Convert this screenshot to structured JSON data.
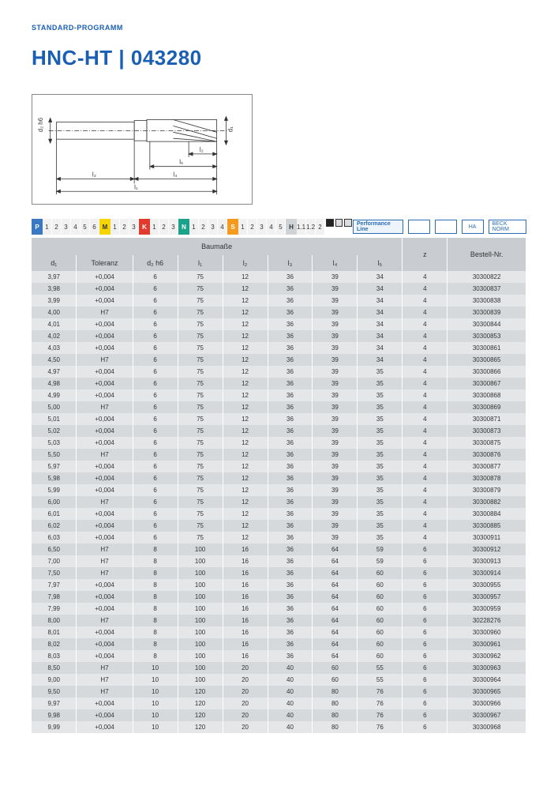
{
  "header_label": "STANDARD-PROGRAMM",
  "title": "HNC-HT | 043280",
  "diagram": {
    "labels": {
      "d1": "d₁",
      "d2h6": "d₂ h6",
      "l1": "l₁",
      "l2": "l₂",
      "l3": "l₃",
      "l4": "l₄",
      "l5": "l₅"
    }
  },
  "strip": {
    "groups": [
      {
        "label": "P",
        "color": "#3a78c4",
        "nums": [
          "1",
          "2",
          "3",
          "4",
          "5",
          "6"
        ]
      },
      {
        "label": "M",
        "color": "#f5d400",
        "nums": [
          "1",
          "2",
          "3"
        ]
      },
      {
        "label": "K",
        "color": "#e23b2e",
        "nums": [
          "1",
          "2",
          "3"
        ]
      },
      {
        "label": "N",
        "color": "#1aa38a",
        "nums": [
          "1",
          "2",
          "3",
          "4"
        ]
      },
      {
        "label": "S",
        "color": "#f39a1f",
        "nums": [
          "1",
          "2",
          "3",
          "4",
          "5"
        ]
      },
      {
        "label": "H",
        "color": "#d0d3d6",
        "nums": [
          "1.1",
          "1.2",
          "2"
        ]
      }
    ],
    "right_icons": [
      "Performance Line",
      "",
      "",
      "HA",
      "BECK NORM"
    ]
  },
  "table": {
    "group_header": "Baumaße",
    "z_header": "z",
    "bestell_header": "Bestell-Nr.",
    "columns": [
      "d₁",
      "Toleranz",
      "d₂ h6",
      "l₁",
      "l₂",
      "l₃",
      "l₄",
      "l₅"
    ],
    "rows": [
      [
        "3,97",
        "+0,004",
        "6",
        "75",
        "12",
        "36",
        "39",
        "34",
        "4",
        "30300822"
      ],
      [
        "3,98",
        "+0,004",
        "6",
        "75",
        "12",
        "36",
        "39",
        "34",
        "4",
        "30300837"
      ],
      [
        "3,99",
        "+0,004",
        "6",
        "75",
        "12",
        "36",
        "39",
        "34",
        "4",
        "30300838"
      ],
      [
        "4,00",
        "H7",
        "6",
        "75",
        "12",
        "36",
        "39",
        "34",
        "4",
        "30300839"
      ],
      [
        "4,01",
        "+0,004",
        "6",
        "75",
        "12",
        "36",
        "39",
        "34",
        "4",
        "30300844"
      ],
      [
        "4,02",
        "+0,004",
        "6",
        "75",
        "12",
        "36",
        "39",
        "34",
        "4",
        "30300853"
      ],
      [
        "4,03",
        "+0,004",
        "6",
        "75",
        "12",
        "36",
        "39",
        "34",
        "4",
        "30300861"
      ],
      [
        "4,50",
        "H7",
        "6",
        "75",
        "12",
        "36",
        "39",
        "34",
        "4",
        "30300865"
      ],
      [
        "4,97",
        "+0,004",
        "6",
        "75",
        "12",
        "36",
        "39",
        "35",
        "4",
        "30300866"
      ],
      [
        "4,98",
        "+0,004",
        "6",
        "75",
        "12",
        "36",
        "39",
        "35",
        "4",
        "30300867"
      ],
      [
        "4,99",
        "+0,004",
        "6",
        "75",
        "12",
        "36",
        "39",
        "35",
        "4",
        "30300868"
      ],
      [
        "5,00",
        "H7",
        "6",
        "75",
        "12",
        "36",
        "39",
        "35",
        "4",
        "30300869"
      ],
      [
        "5,01",
        "+0,004",
        "6",
        "75",
        "12",
        "36",
        "39",
        "35",
        "4",
        "30300871"
      ],
      [
        "5,02",
        "+0,004",
        "6",
        "75",
        "12",
        "36",
        "39",
        "35",
        "4",
        "30300873"
      ],
      [
        "5,03",
        "+0,004",
        "6",
        "75",
        "12",
        "36",
        "39",
        "35",
        "4",
        "30300875"
      ],
      [
        "5,50",
        "H7",
        "6",
        "75",
        "12",
        "36",
        "39",
        "35",
        "4",
        "30300876"
      ],
      [
        "5,97",
        "+0,004",
        "6",
        "75",
        "12",
        "36",
        "39",
        "35",
        "4",
        "30300877"
      ],
      [
        "5,98",
        "+0,004",
        "6",
        "75",
        "12",
        "36",
        "39",
        "35",
        "4",
        "30300878"
      ],
      [
        "5,99",
        "+0,004",
        "6",
        "75",
        "12",
        "36",
        "39",
        "35",
        "4",
        "30300879"
      ],
      [
        "6,00",
        "H7",
        "6",
        "75",
        "12",
        "36",
        "39",
        "35",
        "4",
        "30300882"
      ],
      [
        "6,01",
        "+0,004",
        "6",
        "75",
        "12",
        "36",
        "39",
        "35",
        "4",
        "30300884"
      ],
      [
        "6,02",
        "+0,004",
        "6",
        "75",
        "12",
        "36",
        "39",
        "35",
        "4",
        "30300885"
      ],
      [
        "6,03",
        "+0,004",
        "6",
        "75",
        "12",
        "36",
        "39",
        "35",
        "4",
        "30300911"
      ],
      [
        "6,50",
        "H7",
        "8",
        "100",
        "16",
        "36",
        "64",
        "59",
        "6",
        "30300912"
      ],
      [
        "7,00",
        "H7",
        "8",
        "100",
        "16",
        "36",
        "64",
        "59",
        "6",
        "30300913"
      ],
      [
        "7,50",
        "H7",
        "8",
        "100",
        "16",
        "36",
        "64",
        "60",
        "6",
        "30300914"
      ],
      [
        "7,97",
        "+0,004",
        "8",
        "100",
        "16",
        "36",
        "64",
        "60",
        "6",
        "30300955"
      ],
      [
        "7,98",
        "+0,004",
        "8",
        "100",
        "16",
        "36",
        "64",
        "60",
        "6",
        "30300957"
      ],
      [
        "7,99",
        "+0,004",
        "8",
        "100",
        "16",
        "36",
        "64",
        "60",
        "6",
        "30300959"
      ],
      [
        "8,00",
        "H7",
        "8",
        "100",
        "16",
        "36",
        "64",
        "60",
        "6",
        "30228276"
      ],
      [
        "8,01",
        "+0,004",
        "8",
        "100",
        "16",
        "36",
        "64",
        "60",
        "6",
        "30300960"
      ],
      [
        "8,02",
        "+0,004",
        "8",
        "100",
        "16",
        "36",
        "64",
        "60",
        "6",
        "30300961"
      ],
      [
        "8,03",
        "+0,004",
        "8",
        "100",
        "16",
        "36",
        "64",
        "60",
        "6",
        "30300962"
      ],
      [
        "8,50",
        "H7",
        "10",
        "100",
        "20",
        "40",
        "60",
        "55",
        "6",
        "30300963"
      ],
      [
        "9,00",
        "H7",
        "10",
        "100",
        "20",
        "40",
        "60",
        "55",
        "6",
        "30300964"
      ],
      [
        "9,50",
        "H7",
        "10",
        "120",
        "20",
        "40",
        "80",
        "76",
        "6",
        "30300965"
      ],
      [
        "9,97",
        "+0,004",
        "10",
        "120",
        "20",
        "40",
        "80",
        "76",
        "6",
        "30300966"
      ],
      [
        "9,98",
        "+0,004",
        "10",
        "120",
        "20",
        "40",
        "80",
        "76",
        "6",
        "30300967"
      ],
      [
        "9,99",
        "+0,004",
        "10",
        "120",
        "20",
        "40",
        "80",
        "76",
        "6",
        "30300968"
      ]
    ]
  },
  "colors": {
    "header_bg": "#c9cdd1",
    "row_a": "#e4e6e8",
    "row_b": "#d6d9db",
    "title": "#1a5fb4"
  }
}
